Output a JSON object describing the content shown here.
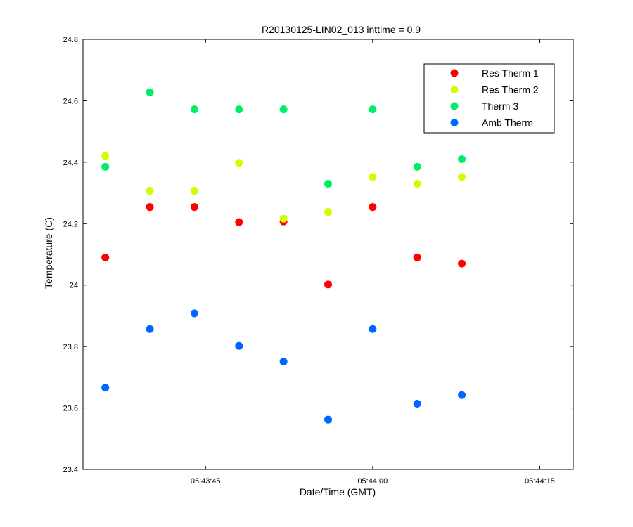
{
  "chart_data": {
    "type": "scatter",
    "title": "R20130125-LIN02_013 inttime = 0.9",
    "xlabel": "Date/Time (GMT)",
    "ylabel": "Temperature (C)",
    "x": [
      "05:43:36",
      "05:43:40",
      "05:43:44",
      "05:43:48",
      "05:43:52",
      "05:43:56",
      "05:44:00",
      "05:44:04",
      "05:44:08"
    ],
    "xlim": [
      "05:43:34",
      "05:44:18"
    ],
    "xticks": [
      "05:43:45",
      "05:44:00",
      "05:44:15"
    ],
    "ylim": [
      23.4,
      24.8
    ],
    "yticks": [
      "23.4",
      "23.6",
      "23.8",
      "24",
      "24.2",
      "24.4",
      "24.6",
      "24.8"
    ],
    "grid": false,
    "legend_position": "top-right",
    "series": [
      {
        "name": "Res Therm 1",
        "color": "#ff0000",
        "values": [
          24.09,
          24.254,
          24.254,
          24.205,
          24.207,
          24.002,
          24.254,
          24.09,
          24.07
        ]
      },
      {
        "name": "Res Therm 2",
        "color": "#ccff00",
        "values": [
          24.42,
          24.307,
          24.307,
          24.398,
          24.216,
          24.238,
          24.352,
          24.33,
          24.352
        ]
      },
      {
        "name": "Therm 3",
        "color": "#00ee66",
        "values": [
          24.385,
          24.628,
          24.572,
          24.572,
          24.572,
          24.33,
          24.572,
          24.385,
          24.41
        ]
      },
      {
        "name": "Amb Therm",
        "color": "#0066ff",
        "values": [
          23.666,
          23.857,
          23.908,
          23.802,
          23.751,
          23.562,
          23.857,
          23.614,
          23.642
        ]
      }
    ]
  }
}
